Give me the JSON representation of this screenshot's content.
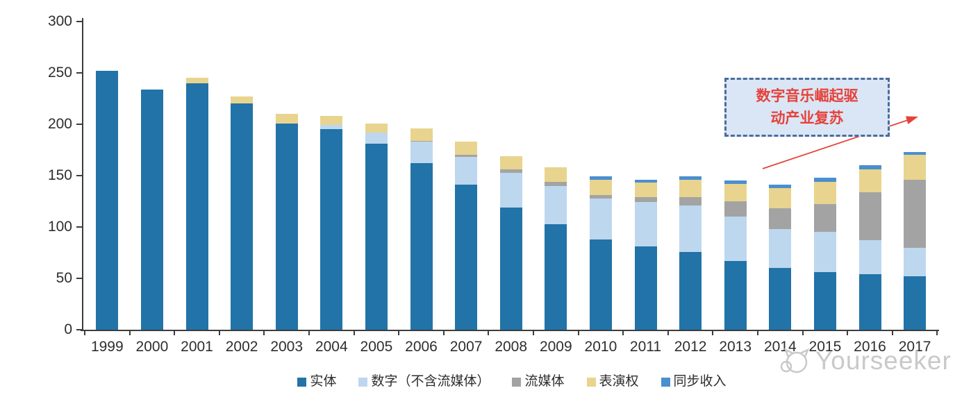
{
  "watermark": {
    "brand": "Yourseeker"
  },
  "annotation": {
    "full_text": "数字音乐崛起驱动产业复苏",
    "line1": "数字音乐崛起驱",
    "line2": "动产业复苏",
    "text_color": "#e6423a",
    "box_fill": "#dae6f5",
    "box_border_color": "#4a6d9b",
    "arrow_color": "#e6423a"
  },
  "chart_data": {
    "type": "bar",
    "stacked": true,
    "title": "",
    "xlabel": "",
    "ylabel": "",
    "ylim": [
      0,
      300
    ],
    "ytick_step": 50,
    "yticks": [
      0,
      50,
      100,
      150,
      200,
      250,
      300
    ],
    "grid": false,
    "legend_position": "bottom",
    "categories": [
      "1999",
      "2000",
      "2001",
      "2002",
      "2003",
      "2004",
      "2005",
      "2006",
      "2007",
      "2008",
      "2009",
      "2010",
      "2011",
      "2012",
      "2013",
      "2014",
      "2015",
      "2016",
      "2017"
    ],
    "series": [
      {
        "name": "实体",
        "color": "#2173a8",
        "values": [
          252,
          234,
          240,
          220,
          201,
          195,
          181,
          162,
          141,
          119,
          103,
          88,
          81,
          76,
          67,
          60,
          56,
          54,
          52
        ]
      },
      {
        "name": "数字（不含流媒体）",
        "color": "#bdd7ee",
        "values": [
          0,
          0,
          0,
          0,
          0,
          4,
          11,
          21,
          27,
          34,
          37,
          40,
          43,
          45,
          43,
          38,
          39,
          33,
          28
        ]
      },
      {
        "name": "流媒体",
        "color": "#a3a3a3",
        "values": [
          0,
          0,
          0,
          0,
          0,
          0,
          0,
          1,
          2,
          3,
          4,
          3,
          5,
          8,
          15,
          20,
          27,
          47,
          66
        ]
      },
      {
        "name": "表演权",
        "color": "#e8d48e",
        "values": [
          0,
          0,
          5,
          7,
          9,
          9,
          9,
          12,
          13,
          13,
          14,
          15,
          14,
          17,
          17,
          20,
          22,
          22,
          24
        ]
      },
      {
        "name": "同步收入",
        "color": "#4a8fd0",
        "values": [
          0,
          0,
          0,
          0,
          0,
          0,
          0,
          0,
          0,
          0,
          0,
          3,
          3,
          3,
          3,
          3,
          4,
          4,
          3
        ]
      }
    ],
    "totals": [
      252,
      234,
      245,
      227,
      210,
      208,
      201,
      196,
      183,
      169,
      158,
      149,
      146,
      149,
      145,
      141,
      148,
      160,
      173
    ]
  }
}
